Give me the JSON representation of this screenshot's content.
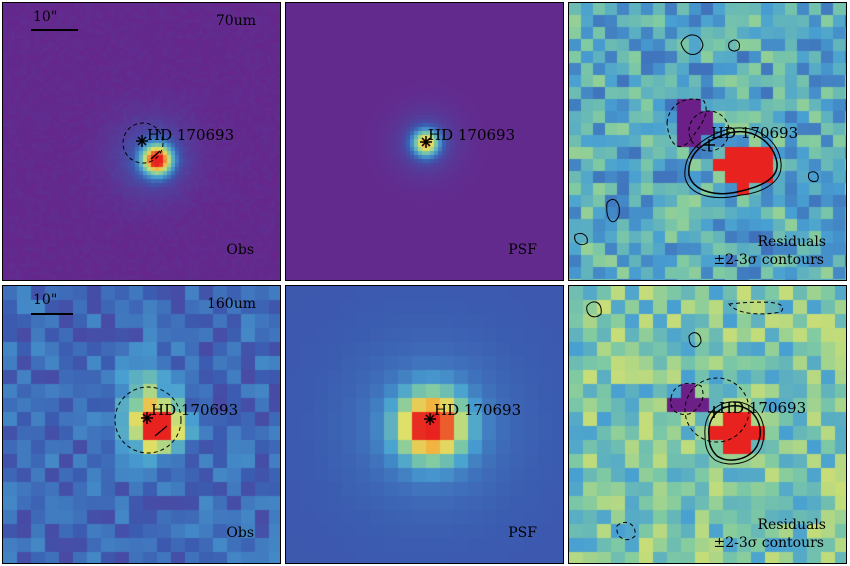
{
  "target_name": "HD 170693",
  "scale_bar_label": "10\"",
  "rows": [
    {
      "band": "70um",
      "panels": [
        {
          "kind": "obs",
          "label": "Obs"
        },
        {
          "kind": "psf",
          "label": "PSF"
        },
        {
          "kind": "residual",
          "label_line1": "Residuals",
          "label_line2": "±2-3σ contours"
        }
      ]
    },
    {
      "band": "160um",
      "panels": [
        {
          "kind": "obs",
          "label": "Obs"
        },
        {
          "kind": "psf",
          "label": "PSF"
        },
        {
          "kind": "residual",
          "label_line1": "Residuals",
          "label_line2": "±2-3σ contours"
        }
      ]
    }
  ],
  "colormap": [
    "#6c1f86",
    "#3b5bb0",
    "#48a0d2",
    "#7fcaa3",
    "#dde36a",
    "#f2b441",
    "#e8221f"
  ]
}
